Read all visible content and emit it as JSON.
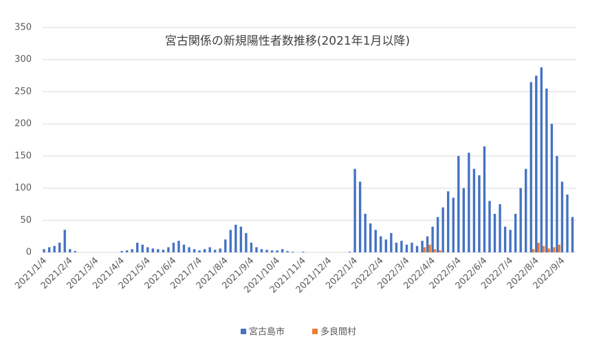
{
  "chart_data": {
    "type": "bar",
    "title": "宮古関係の新規陽性者数推移(2021年1月以降)",
    "categories": [
      "2021/1/4",
      null,
      null,
      null,
      null,
      "2021/2/4",
      null,
      null,
      null,
      null,
      "2021/3/4",
      null,
      null,
      null,
      null,
      "2021/4/4",
      null,
      null,
      null,
      null,
      "2021/5/4",
      null,
      null,
      null,
      null,
      "2021/6/4",
      null,
      null,
      null,
      null,
      "2021/7/4",
      null,
      null,
      null,
      null,
      "2021/8/4",
      null,
      null,
      null,
      null,
      "2021/9/4",
      null,
      null,
      null,
      null,
      "2021/10/4",
      null,
      null,
      null,
      null,
      "2021/11/4",
      null,
      null,
      null,
      null,
      "2021/12/4",
      null,
      null,
      null,
      null,
      "2022/1/4",
      null,
      null,
      null,
      null,
      "2022/2/4",
      null,
      null,
      null,
      null,
      "2022/3/4",
      null,
      null,
      null,
      null,
      "2022/4/4",
      null,
      null,
      null,
      null,
      "2022/5/4",
      null,
      null,
      null,
      null,
      "2022/6/4",
      null,
      null,
      null,
      null,
      "2022/7/4",
      null,
      null,
      null,
      null,
      "2022/8/4",
      null,
      null,
      null,
      null,
      "2022/9/4",
      null,
      null
    ],
    "series": [
      {
        "name": "宮古島市",
        "color": "#4472c4",
        "values": [
          5,
          8,
          10,
          15,
          35,
          5,
          2,
          0,
          0,
          0,
          0,
          0,
          0,
          0,
          0,
          2,
          3,
          5,
          15,
          12,
          8,
          6,
          5,
          4,
          8,
          15,
          18,
          12,
          8,
          5,
          3,
          5,
          8,
          4,
          6,
          20,
          35,
          43,
          40,
          30,
          15,
          8,
          5,
          4,
          3,
          3,
          5,
          2,
          1,
          0,
          1,
          0,
          0,
          0,
          0,
          0,
          0,
          0,
          0,
          1,
          130,
          110,
          60,
          45,
          35,
          25,
          20,
          30,
          15,
          18,
          12,
          15,
          10,
          18,
          25,
          40,
          55,
          70,
          95,
          85,
          150,
          100,
          155,
          130,
          120,
          165,
          80,
          60,
          75,
          40,
          35,
          60,
          100,
          130,
          265,
          275,
          288,
          255,
          200,
          150,
          110,
          90,
          55
        ]
      },
      {
        "name": "多良間村",
        "color": "#ed7d31",
        "values": [
          0,
          0,
          0,
          0,
          0,
          0,
          0,
          0,
          0,
          0,
          0,
          0,
          0,
          0,
          0,
          0,
          0,
          0,
          0,
          0,
          0,
          0,
          0,
          0,
          0,
          0,
          0,
          0,
          0,
          0,
          0,
          0,
          0,
          0,
          0,
          0,
          0,
          0,
          0,
          0,
          0,
          0,
          0,
          0,
          0,
          0,
          0,
          0,
          0,
          0,
          0,
          0,
          0,
          0,
          0,
          0,
          0,
          0,
          0,
          0,
          0,
          0,
          0,
          0,
          0,
          0,
          0,
          0,
          0,
          0,
          0,
          0,
          0,
          8,
          12,
          5,
          3,
          0,
          0,
          0,
          0,
          0,
          0,
          0,
          0,
          0,
          0,
          0,
          0,
          0,
          0,
          0,
          0,
          0,
          5,
          15,
          10,
          6,
          8,
          12,
          0,
          0,
          0
        ]
      }
    ],
    "ylim": [
      0,
      350
    ],
    "yticks": [
      0,
      50,
      100,
      150,
      200,
      250,
      300,
      350
    ],
    "grid": true,
    "legend": "bottom"
  }
}
